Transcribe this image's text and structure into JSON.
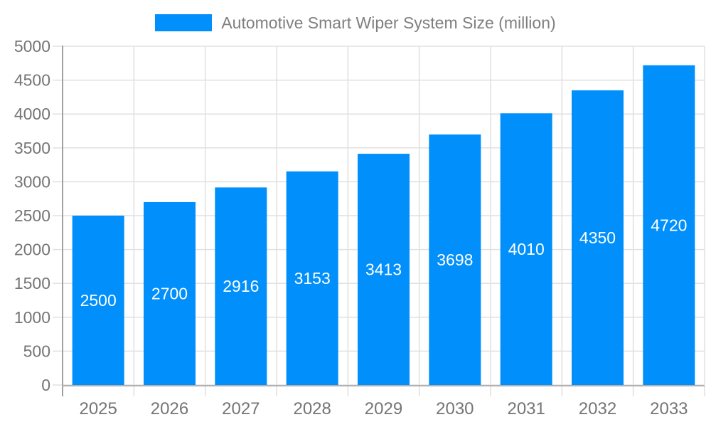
{
  "chart_data": {
    "type": "bar",
    "title": "Automotive Smart Wiper System Size (million)",
    "legend": {
      "position": "top",
      "label": "Automotive Smart Wiper System Size (million)"
    },
    "categories": [
      "2025",
      "2026",
      "2027",
      "2028",
      "2029",
      "2030",
      "2031",
      "2032",
      "2033"
    ],
    "series": [
      {
        "name": "Automotive Smart Wiper System Size (million)",
        "values": [
          2500,
          2700,
          2916,
          3153,
          3413,
          3698,
          4010,
          4350,
          4720
        ]
      }
    ],
    "bar_value_labels": [
      "2500",
      "2700",
      "2916",
      "3153",
      "3413",
      "3698",
      "4010",
      "4350",
      "4720"
    ],
    "xlabel": "",
    "ylabel": "",
    "ylim": [
      0,
      5000
    ],
    "ytick_interval": 500,
    "ytick_labels": [
      "0",
      "500",
      "1000",
      "1500",
      "2000",
      "2500",
      "3000",
      "3500",
      "4000",
      "4500",
      "5000"
    ],
    "grid": true,
    "colors": {
      "bar": "#008FFB",
      "grid": "#e0e0e0",
      "tick": "#e0e0e0",
      "y_axis_line": "#a0a0a0",
      "x_axis_line": "#b1b1b1",
      "tick_label": "#757575",
      "legend_text": "#7f7f7f",
      "bar_label": "#ffffff",
      "background": "#ffffff"
    }
  }
}
